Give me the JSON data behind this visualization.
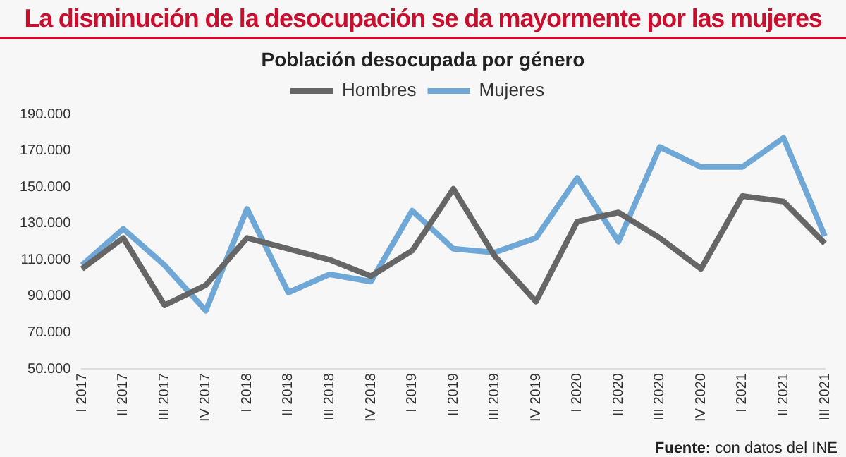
{
  "chart_data": {
    "type": "line",
    "title": "La disminución de la desocupación se da mayormente por las mujeres",
    "subtitle": "Población desocupada por género",
    "categories": [
      "I 2017",
      "II 2017",
      "III 2017",
      "IV 2017",
      "I 2018",
      "II 2018",
      "III 2018",
      "IV 2018",
      "I 2019",
      "II 2019",
      "III 2019",
      "IV 2019",
      "I 2020",
      "II 2020",
      "III 2020",
      "IV 2020",
      "I 2021",
      "II 2021",
      "III 2021"
    ],
    "series": [
      {
        "name": "Hombres",
        "color": "#666666",
        "values": [
          105000,
          122000,
          85000,
          96000,
          122000,
          116000,
          110000,
          101000,
          115000,
          149000,
          112000,
          87000,
          131000,
          136000,
          122000,
          105000,
          145000,
          142000,
          119000
        ]
      },
      {
        "name": "Mujeres",
        "color": "#6fa8d6",
        "values": [
          107000,
          127000,
          107000,
          82000,
          138000,
          92000,
          102000,
          98000,
          137000,
          116000,
          114000,
          122000,
          155000,
          120000,
          172000,
          161000,
          161000,
          177000,
          123000
        ]
      }
    ],
    "ylim": [
      50000,
      190000
    ],
    "yticks": [
      {
        "value": 50000,
        "label": "50.000"
      },
      {
        "value": 70000,
        "label": "70.000"
      },
      {
        "value": 90000,
        "label": "90.000"
      },
      {
        "value": 110000,
        "label": "110.000"
      },
      {
        "value": 130000,
        "label": "130.000"
      },
      {
        "value": 150000,
        "label": "150.000"
      },
      {
        "value": 170000,
        "label": "170.000"
      },
      {
        "value": 190000,
        "label": "190.000"
      }
    ],
    "grid": false,
    "legend": "top",
    "marker": "none",
    "line_style": "solid",
    "annotations": [
      "Fuente: con datos del INE"
    ]
  }
}
